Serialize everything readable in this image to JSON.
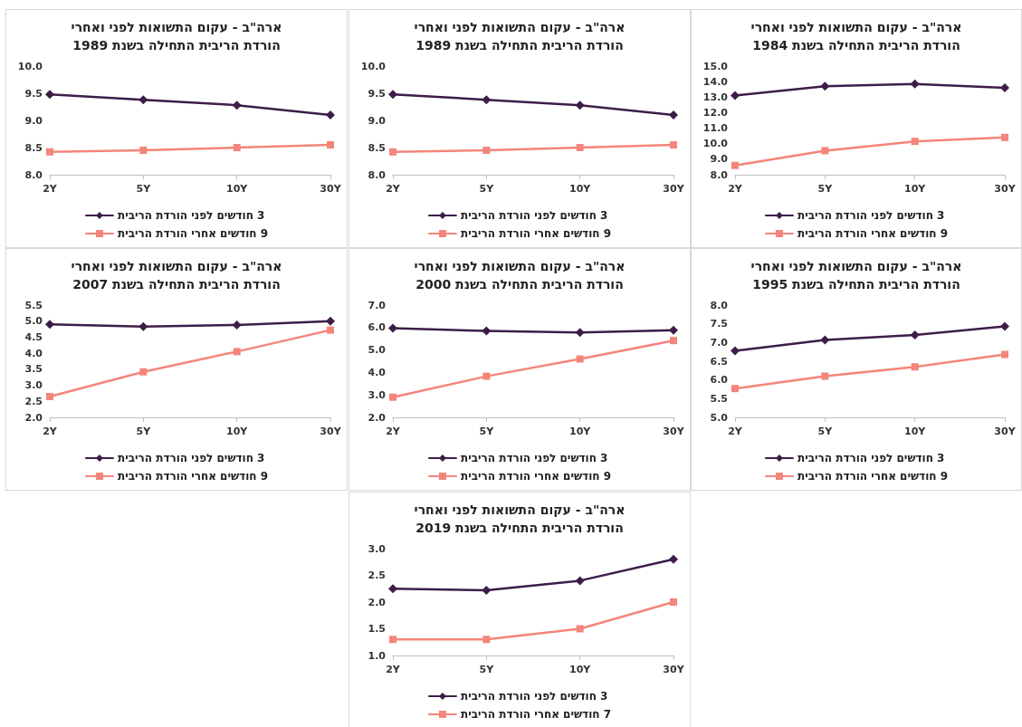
{
  "chart_data": [
    {
      "type": "line",
      "title": "ארה\"ב - עקום התשואות לפני ואחרי\nהורדת הריבית התחילה בשנת 1989",
      "categories": [
        "2Y",
        "5Y",
        "10Y",
        "30Y"
      ],
      "legend": "bottom",
      "ylim": [
        8,
        10
      ],
      "yticks": [
        {
          "value": 8,
          "label": "8.0"
        },
        {
          "value": 8.5,
          "label": "8.5"
        },
        {
          "value": 9,
          "label": "9.0"
        },
        {
          "value": 9.5,
          "label": "9.5"
        },
        {
          "value": 10,
          "label": "10.0"
        }
      ],
      "series": [
        {
          "name": "3 חודשים לפני הורדת הריבית",
          "color": "#3d1d48",
          "marker": "diamond",
          "values": [
            9.48,
            9.38,
            9.28,
            9.1
          ]
        },
        {
          "name": "9 חודשים אחרי הורדת הריבית",
          "color": "#f4857a",
          "marker": "square",
          "values": [
            8.42,
            8.45,
            8.5,
            8.55
          ]
        }
      ]
    },
    {
      "type": "line",
      "title": "ארה\"ב - עקום התשואות לפני ואחרי\nהורדת הריבית התחילה בשנת 1989",
      "categories": [
        "2Y",
        "5Y",
        "10Y",
        "30Y"
      ],
      "legend": "bottom",
      "ylim": [
        8,
        10
      ],
      "yticks": [
        {
          "value": 8,
          "label": "8.0"
        },
        {
          "value": 8.5,
          "label": "8.5"
        },
        {
          "value": 9,
          "label": "9.0"
        },
        {
          "value": 9.5,
          "label": "9.5"
        },
        {
          "value": 10,
          "label": "10.0"
        }
      ],
      "series": [
        {
          "name": "3 חודשים לפני הורדת הריבית",
          "color": "#3d1d48",
          "marker": "diamond",
          "values": [
            9.48,
            9.38,
            9.28,
            9.1
          ]
        },
        {
          "name": "9 חודשים אחרי הורדת הריבית",
          "color": "#f4857a",
          "marker": "square",
          "values": [
            8.42,
            8.45,
            8.5,
            8.55
          ]
        }
      ]
    },
    {
      "type": "line",
      "title": "ארה\"ב - עקום התשואות לפני ואחרי\nהורדת הריבית התחילה בשנת 1984",
      "categories": [
        "2Y",
        "5Y",
        "10Y",
        "30Y"
      ],
      "legend": "bottom",
      "ylim": [
        8,
        15
      ],
      "yticks": [
        {
          "value": 8,
          "label": "8.0"
        },
        {
          "value": 9,
          "label": "9.0"
        },
        {
          "value": 10,
          "label": "10.0"
        },
        {
          "value": 11,
          "label": "11.0"
        },
        {
          "value": 12,
          "label": "12.0"
        },
        {
          "value": 13,
          "label": "13.0"
        },
        {
          "value": 14,
          "label": "14.0"
        },
        {
          "value": 15,
          "label": "15.0"
        }
      ],
      "series": [
        {
          "name": "3 חודשים לפני הורדת הריבית",
          "color": "#3d1d48",
          "marker": "diamond",
          "values": [
            13.1,
            13.7,
            13.85,
            13.6
          ]
        },
        {
          "name": "9 חודשים אחרי הורדת הריבית",
          "color": "#f4857a",
          "marker": "square",
          "values": [
            8.6,
            9.55,
            10.15,
            10.4
          ]
        }
      ]
    },
    {
      "type": "line",
      "title": "ארה\"ב - עקום התשואות לפני ואחרי\nהורדת הריבית התחילה בשנת 2007",
      "categories": [
        "2Y",
        "5Y",
        "10Y",
        "30Y"
      ],
      "legend": "bottom",
      "ylim": [
        2,
        5.5
      ],
      "yticks": [
        {
          "value": 2,
          "label": "2.0"
        },
        {
          "value": 2.5,
          "label": "2.5"
        },
        {
          "value": 3,
          "label": "3.0"
        },
        {
          "value": 3.5,
          "label": "3.5"
        },
        {
          "value": 4,
          "label": "4.0"
        },
        {
          "value": 4.5,
          "label": "4.5"
        },
        {
          "value": 5,
          "label": "5.0"
        },
        {
          "value": 5.5,
          "label": "5.5"
        }
      ],
      "series": [
        {
          "name": "3 חודשים לפני הורדת הריבית",
          "color": "#3d1d48",
          "marker": "diamond",
          "values": [
            4.9,
            4.83,
            4.88,
            5.0
          ]
        },
        {
          "name": "9 חודשים אחרי הורדת הריבית",
          "color": "#f4857a",
          "marker": "square",
          "values": [
            2.65,
            3.42,
            4.05,
            4.72
          ]
        }
      ]
    },
    {
      "type": "line",
      "title": "ארה\"ב - עקום התשואות לפני ואחרי\nהורדת הריבית התחילה בשנת 2000",
      "categories": [
        "2Y",
        "5Y",
        "10Y",
        "30Y"
      ],
      "legend": "bottom",
      "ylim": [
        2,
        7
      ],
      "yticks": [
        {
          "value": 2,
          "label": "2.0"
        },
        {
          "value": 3,
          "label": "3.0"
        },
        {
          "value": 4,
          "label": "4.0"
        },
        {
          "value": 5,
          "label": "5.0"
        },
        {
          "value": 6,
          "label": "6.0"
        },
        {
          "value": 7,
          "label": "7.0"
        }
      ],
      "series": [
        {
          "name": "3 חודשים לפני הורדת הריבית",
          "color": "#3d1d48",
          "marker": "diamond",
          "values": [
            5.97,
            5.85,
            5.78,
            5.88
          ]
        },
        {
          "name": "9 חודשים אחרי הורדת הריבית",
          "color": "#f4857a",
          "marker": "square",
          "values": [
            2.9,
            3.83,
            4.6,
            5.42
          ]
        }
      ]
    },
    {
      "type": "line",
      "title": "ארה\"ב - עקום התשואות לפני ואחרי\nהורדת הריבית התחילה בשנת 1995",
      "categories": [
        "2Y",
        "5Y",
        "10Y",
        "30Y"
      ],
      "legend": "bottom",
      "ylim": [
        5,
        8
      ],
      "yticks": [
        {
          "value": 5,
          "label": "5.0"
        },
        {
          "value": 5.5,
          "label": "5.5"
        },
        {
          "value": 6,
          "label": "6.0"
        },
        {
          "value": 6.5,
          "label": "6.5"
        },
        {
          "value": 7,
          "label": "7.0"
        },
        {
          "value": 7.5,
          "label": "7.5"
        },
        {
          "value": 8,
          "label": "8.0"
        }
      ],
      "series": [
        {
          "name": "3 חודשים לפני הורדת הריבית",
          "color": "#3d1d48",
          "marker": "diamond",
          "values": [
            6.78,
            7.07,
            7.2,
            7.43
          ]
        },
        {
          "name": "9 חודשים אחרי הורדת הריבית",
          "color": "#f4857a",
          "marker": "square",
          "values": [
            5.77,
            6.1,
            6.35,
            6.68
          ]
        }
      ]
    },
    {
      "type": "line",
      "title": "ארה\"ב - עקום התשואות לפני ואחרי\nהורדת הריבית התחילה בשנת 2019",
      "categories": [
        "2Y",
        "5Y",
        "10Y",
        "30Y"
      ],
      "legend": "bottom",
      "ylim": [
        1,
        3
      ],
      "yticks": [
        {
          "value": 1,
          "label": "1.0"
        },
        {
          "value": 1.5,
          "label": "1.5"
        },
        {
          "value": 2,
          "label": "2.0"
        },
        {
          "value": 2.5,
          "label": "2.5"
        },
        {
          "value": 3,
          "label": "3.0"
        }
      ],
      "series": [
        {
          "name": "3 חודשים לפני הורדת הריבית",
          "color": "#3d1d48",
          "marker": "diamond",
          "values": [
            2.25,
            2.22,
            2.4,
            2.8
          ]
        },
        {
          "name": "7 חודשים אחרי הורדת הריבית",
          "color": "#f4857a",
          "marker": "square",
          "values": [
            1.3,
            1.3,
            1.5,
            2.0
          ]
        }
      ]
    }
  ]
}
